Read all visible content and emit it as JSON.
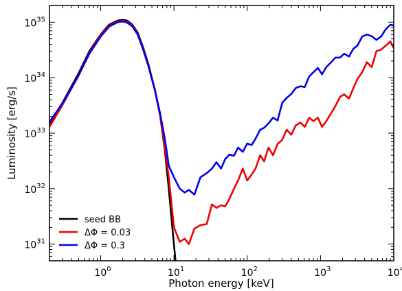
{
  "chart_data": {
    "type": "line",
    "title": "",
    "xlabel": "Photon energy [keV]",
    "ylabel": "Luminosity [erg/s]",
    "xscale": "log",
    "yscale": "log",
    "xlim": [
      0.2,
      10000
    ],
    "ylim": [
      5e+30,
      2e+35
    ],
    "grid": false,
    "legend_position": "lower-left",
    "x_ticks": [
      {
        "base": "10",
        "exp": "0",
        "value": 1
      },
      {
        "base": "10",
        "exp": "1",
        "value": 10
      },
      {
        "base": "10",
        "exp": "2",
        "value": 100
      },
      {
        "base": "10",
        "exp": "3",
        "value": 1000
      },
      {
        "base": "10",
        "exp": "4",
        "value": 10000
      }
    ],
    "y_ticks": [
      {
        "base": "10",
        "exp": "31",
        "value": 1e+31
      },
      {
        "base": "10",
        "exp": "32",
        "value": 1e+32
      },
      {
        "base": "10",
        "exp": "33",
        "value": 1e+33
      },
      {
        "base": "10",
        "exp": "34",
        "value": 1e+34
      },
      {
        "base": "10",
        "exp": "35",
        "value": 1e+35
      }
    ],
    "series": [
      {
        "name": "seed BB",
        "color": "#000000",
        "points": [
          [
            0.2,
            1.5e+33
          ],
          [
            0.3,
            3.5e+33
          ],
          [
            0.5,
            1.2e+34
          ],
          [
            0.7,
            3e+34
          ],
          [
            1.0,
            6e+34
          ],
          [
            1.3,
            9e+34
          ],
          [
            1.7,
            1.07e+35
          ],
          [
            2.0,
            1.1e+35
          ],
          [
            2.3,
            1.07e+35
          ],
          [
            2.7,
            9e+34
          ],
          [
            3.2,
            6.5e+34
          ],
          [
            3.8,
            3.5e+34
          ],
          [
            4.5,
            1.7e+34
          ],
          [
            5.5,
            6e+33
          ],
          [
            6.5,
            2e+33
          ],
          [
            7.5,
            5e+32
          ],
          [
            8.5,
            1e+32
          ],
          [
            9.5,
            2e+31
          ],
          [
            10.5,
            5e+30
          ]
        ]
      },
      {
        "name": "ΔΦ = 0.03",
        "color": "#ee0000",
        "points": [
          [
            0.2,
            1.3e+33
          ],
          [
            0.3,
            3.2e+33
          ],
          [
            0.5,
            1.1e+34
          ],
          [
            0.7,
            2.8e+34
          ],
          [
            1.0,
            5.8e+34
          ],
          [
            1.3,
            8.6e+34
          ],
          [
            1.7,
            1.03e+35
          ],
          [
            2.0,
            1.06e+35
          ],
          [
            2.3,
            1.02e+35
          ],
          [
            2.7,
            8.6e+34
          ],
          [
            3.2,
            6.2e+34
          ],
          [
            3.8,
            3.3e+34
          ],
          [
            4.5,
            1.6e+34
          ],
          [
            5.5,
            5.8e+33
          ],
          [
            6.5,
            2e+33
          ],
          [
            7.5,
            5.5e+32
          ],
          [
            8.5,
            1.6e+32
          ],
          [
            10,
            2e+31
          ],
          [
            12,
            1.1e+31
          ],
          [
            14,
            1.25e+31
          ],
          [
            16,
            1e+31
          ],
          [
            19,
            1.9e+31
          ],
          [
            23,
            2.2e+31
          ],
          [
            28,
            2.3e+31
          ],
          [
            33,
            5.2e+31
          ],
          [
            38,
            4.5e+31
          ],
          [
            44,
            5e+31
          ],
          [
            50,
            4.8e+31
          ],
          [
            57,
            6.5e+31
          ],
          [
            66,
            1e+32
          ],
          [
            75,
            1.4e+32
          ],
          [
            87,
            2.3e+32
          ],
          [
            100,
            1.4e+32
          ],
          [
            115,
            1.8e+32
          ],
          [
            130,
            2.3e+32
          ],
          [
            150,
            4e+32
          ],
          [
            170,
            3.1e+32
          ],
          [
            195,
            5.5e+32
          ],
          [
            225,
            4e+32
          ],
          [
            260,
            6.4e+32
          ],
          [
            300,
            7.5e+32
          ],
          [
            345,
            1.15e+33
          ],
          [
            400,
            9.4e+32
          ],
          [
            460,
            1.38e+33
          ],
          [
            530,
            1.55e+33
          ],
          [
            610,
            1.3e+33
          ],
          [
            700,
            1.9e+33
          ],
          [
            800,
            1.65e+33
          ],
          [
            920,
            1.9e+33
          ],
          [
            1050,
            1.3e+33
          ],
          [
            1200,
            1.65e+33
          ],
          [
            1400,
            2.3e+33
          ],
          [
            1600,
            3.1e+33
          ],
          [
            1850,
            4.5e+33
          ],
          [
            2100,
            5e+33
          ],
          [
            2450,
            4.2e+33
          ],
          [
            2800,
            6.4e+33
          ],
          [
            3200,
            9.5e+33
          ],
          [
            3700,
            1.25e+34
          ],
          [
            4300,
            1.9e+34
          ],
          [
            5000,
            1.55e+34
          ],
          [
            5800,
            3e+34
          ],
          [
            6700,
            3.2e+34
          ],
          [
            7800,
            3.8e+34
          ],
          [
            9000,
            4.5e+34
          ],
          [
            10000,
            3.4e+34
          ]
        ]
      },
      {
        "name": "ΔΦ = 0.3",
        "color": "#0000ee",
        "points": [
          [
            0.2,
            1.6e+33
          ],
          [
            0.3,
            3.4e+33
          ],
          [
            0.5,
            1.1e+34
          ],
          [
            0.7,
            2.7e+34
          ],
          [
            1.0,
            5.5e+34
          ],
          [
            1.3,
            8.3e+34
          ],
          [
            1.7,
            1e+35
          ],
          [
            2.0,
            1.03e+35
          ],
          [
            2.3,
            9.8e+34
          ],
          [
            2.7,
            8.4e+34
          ],
          [
            3.2,
            6e+34
          ],
          [
            3.8,
            3.2e+34
          ],
          [
            4.5,
            1.6e+34
          ],
          [
            5.5,
            6e+33
          ],
          [
            6.5,
            2.2e+33
          ],
          [
            7.5,
            8e+32
          ],
          [
            8.5,
            2.6e+32
          ],
          [
            10,
            1.6e+32
          ],
          [
            12,
            1e+32
          ],
          [
            14,
            8.5e+31
          ],
          [
            16,
            9.5e+31
          ],
          [
            19,
            7.8e+31
          ],
          [
            23,
            1.6e+32
          ],
          [
            28,
            1.9e+32
          ],
          [
            33,
            2.3e+32
          ],
          [
            38,
            3e+32
          ],
          [
            44,
            2.3e+32
          ],
          [
            50,
            3.4e+32
          ],
          [
            57,
            4.1e+32
          ],
          [
            66,
            3.9e+32
          ],
          [
            75,
            5.5e+32
          ],
          [
            87,
            4.6e+32
          ],
          [
            100,
            6.5e+32
          ],
          [
            115,
            6.1e+32
          ],
          [
            130,
            8e+32
          ],
          [
            150,
            1.15e+33
          ],
          [
            170,
            1.25e+33
          ],
          [
            195,
            1.5e+33
          ],
          [
            225,
            1.9e+33
          ],
          [
            260,
            1.7e+33
          ],
          [
            300,
            3.5e+33
          ],
          [
            345,
            4.3e+33
          ],
          [
            400,
            5.1e+33
          ],
          [
            460,
            6.5e+33
          ],
          [
            530,
            7e+33
          ],
          [
            610,
            6.8e+33
          ],
          [
            700,
            1.05e+34
          ],
          [
            800,
            1.25e+34
          ],
          [
            920,
            1.5e+34
          ],
          [
            1050,
            1.15e+34
          ],
          [
            1200,
            1.55e+34
          ],
          [
            1400,
            1.9e+34
          ],
          [
            1600,
            2.3e+34
          ],
          [
            1850,
            2.3e+34
          ],
          [
            2100,
            2.7e+34
          ],
          [
            2450,
            2.4e+34
          ],
          [
            2800,
            3.3e+34
          ],
          [
            3200,
            3.8e+34
          ],
          [
            3700,
            5.5e+34
          ],
          [
            4300,
            6e+34
          ],
          [
            5000,
            5.6e+34
          ],
          [
            5800,
            4.8e+34
          ],
          [
            6700,
            5.5e+34
          ],
          [
            7800,
            7.5e+34
          ],
          [
            9000,
            9e+34
          ],
          [
            10000,
            8.7e+34
          ]
        ]
      }
    ]
  }
}
